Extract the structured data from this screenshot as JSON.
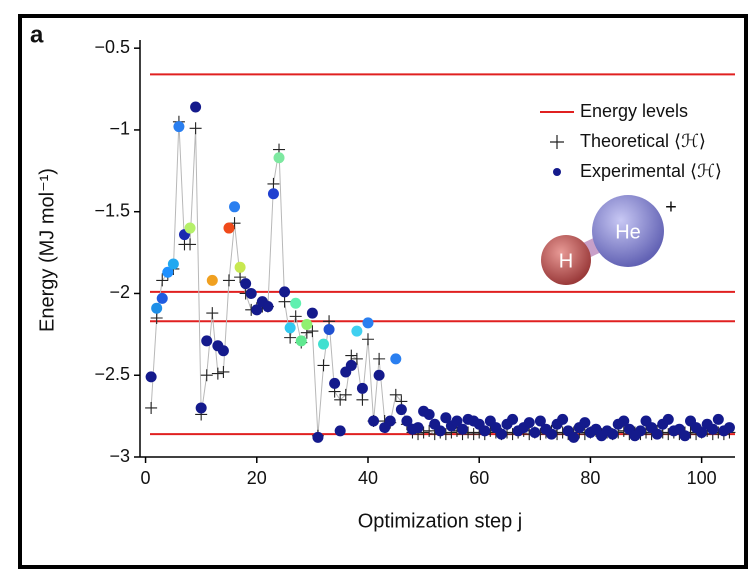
{
  "chart_data": {
    "type": "scatter",
    "panel_label": "a",
    "x_label": "Optimization step j",
    "y_label": "Energy (MJ mol⁻¹)",
    "xlim": [
      -1,
      106
    ],
    "ylim": [
      -3,
      -0.45
    ],
    "xticks": [
      0,
      20,
      40,
      60,
      80,
      100
    ],
    "yticks": [
      {
        "value": -0.5,
        "label": "−0.5"
      },
      {
        "value": -1,
        "label": "−1"
      },
      {
        "value": -1.5,
        "label": "−1.5"
      },
      {
        "value": -2,
        "label": "−2"
      },
      {
        "value": -2.5,
        "label": "−2.5"
      },
      {
        "value": -3,
        "label": "−3"
      }
    ],
    "legend_position": "upper right",
    "energy_levels": {
      "name": "Energy levels",
      "color": "#e02020",
      "values": [
        -0.66,
        -1.99,
        -2.17,
        -2.86
      ]
    },
    "x": [
      1,
      2,
      3,
      4,
      5,
      6,
      7,
      8,
      9,
      10,
      11,
      12,
      13,
      14,
      15,
      16,
      17,
      18,
      19,
      20,
      21,
      22,
      23,
      24,
      25,
      26,
      27,
      28,
      29,
      30,
      31,
      32,
      33,
      34,
      35,
      36,
      37,
      38,
      39,
      40,
      41,
      42,
      43,
      44,
      45,
      46,
      47,
      48,
      49,
      50,
      51,
      52,
      53,
      54,
      55,
      56,
      57,
      58,
      59,
      60,
      61,
      62,
      63,
      64,
      65,
      66,
      67,
      68,
      69,
      70,
      71,
      72,
      73,
      74,
      75,
      76,
      77,
      78,
      79,
      80,
      81,
      82,
      83,
      84,
      85,
      86,
      87,
      88,
      89,
      90,
      91,
      92,
      93,
      94,
      95,
      96,
      97,
      98,
      99,
      100,
      101,
      102,
      103,
      104,
      105
    ],
    "series": [
      {
        "name": "Theoretical ⟨ℋ⟩",
        "color": "#222222",
        "line_color": "#b8b8b8",
        "values": [
          -2.7,
          -2.15,
          -1.92,
          -1.88,
          -1.85,
          -0.95,
          -1.7,
          -1.7,
          -0.99,
          -2.74,
          -2.5,
          -2.12,
          -2.49,
          -2.48,
          -1.92,
          -1.57,
          -1.9,
          -2.0,
          -2.1,
          -2.09,
          -2.08,
          -2.08,
          -1.33,
          -1.12,
          -2.05,
          -2.27,
          -2.14,
          -2.3,
          -2.24,
          -2.23,
          -2.87,
          -2.44,
          -2.17,
          -2.6,
          -2.65,
          -2.62,
          -2.38,
          -2.4,
          -2.65,
          -2.28,
          -2.78,
          -2.4,
          -2.78,
          -2.79,
          -2.62,
          -2.66,
          -2.8,
          -2.85,
          -2.86,
          -2.85,
          -2.84,
          -2.86,
          -2.85,
          -2.86,
          -2.85,
          -2.84,
          -2.86,
          -2.85,
          -2.86,
          -2.85,
          -2.86,
          -2.84,
          -2.85,
          -2.86,
          -2.85,
          -2.86,
          -2.85,
          -2.84,
          -2.86,
          -2.85,
          -2.86,
          -2.85,
          -2.84,
          -2.86,
          -2.85,
          -2.86,
          -2.85,
          -2.85,
          -2.86,
          -2.85,
          -2.84,
          -2.86,
          -2.85,
          -2.86,
          -2.85,
          -2.84,
          -2.86,
          -2.85,
          -2.86,
          -2.85,
          -2.86,
          -2.84,
          -2.85,
          -2.86,
          -2.85,
          -2.86,
          -2.85,
          -2.85,
          -2.86,
          -2.85,
          -2.84,
          -2.86,
          -2.85,
          -2.86,
          -2.85
        ]
      },
      {
        "name": "Experimental ⟨ℋ⟩",
        "color": "#141a8c",
        "values": [
          -2.51,
          -2.09,
          -2.03,
          -1.87,
          -1.82,
          -0.98,
          -1.64,
          -1.6,
          -0.86,
          -2.7,
          -2.29,
          -1.92,
          -2.32,
          -2.35,
          -1.6,
          -1.47,
          -1.84,
          -1.94,
          -2.0,
          -2.1,
          -2.05,
          -2.08,
          -1.39,
          -1.17,
          -1.99,
          -2.21,
          -2.06,
          -2.29,
          -2.19,
          -2.12,
          -2.88,
          -2.31,
          -2.22,
          -2.55,
          -2.84,
          -2.48,
          -2.44,
          -2.23,
          -2.58,
          -2.18,
          -2.78,
          -2.5,
          -2.82,
          -2.78,
          -2.4,
          -2.71,
          -2.78,
          -2.83,
          -2.82,
          -2.72,
          -2.74,
          -2.8,
          -2.84,
          -2.76,
          -2.81,
          -2.78,
          -2.83,
          -2.77,
          -2.78,
          -2.8,
          -2.84,
          -2.78,
          -2.82,
          -2.86,
          -2.8,
          -2.77,
          -2.84,
          -2.82,
          -2.79,
          -2.85,
          -2.78,
          -2.83,
          -2.86,
          -2.8,
          -2.77,
          -2.84,
          -2.88,
          -2.82,
          -2.79,
          -2.85,
          -2.83,
          -2.87,
          -2.84,
          -2.86,
          -2.8,
          -2.78,
          -2.83,
          -2.87,
          -2.84,
          -2.78,
          -2.82,
          -2.86,
          -2.8,
          -2.77,
          -2.84,
          -2.83,
          -2.87,
          -2.78,
          -2.82,
          -2.85,
          -2.8,
          -2.83,
          -2.77,
          -2.84,
          -2.82
        ],
        "point_colors": [
          "#141a8c",
          "#1e8fe8",
          "#1f5be0",
          "#1e90ff",
          "#22a8f0",
          "#2a7ff0",
          "#1a2ab0",
          "#b5f06a",
          "#141a8c",
          "#141a8c",
          "#141a8c",
          "#f0a020",
          "#141a8c",
          "#141a8c",
          "#f04a1a",
          "#2a7ff0",
          "#c8e850",
          "#141a8c",
          "#141a8c",
          "#141a8c",
          "#141a8c",
          "#141a8c",
          "#2040d0",
          "#7de8a0",
          "#141a8c",
          "#30c8f0",
          "#60f0b0",
          "#60e890",
          "#90f070",
          "#141a8c",
          "#141a8c",
          "#40e0d0",
          "#2050d0",
          "#141a8c",
          "#141a8c",
          "#141a8c",
          "#141a8c",
          "#40d0f0",
          "#141a8c",
          "#2a7ff0",
          "#141a8c",
          "#141a8c",
          "#141a8c",
          "#141a8c",
          "#2a7ff0",
          "#141a8c",
          "#141a8c",
          "#141a8c",
          "#141a8c",
          "#141a8c",
          "#141a8c",
          "#141a8c",
          "#141a8c",
          "#141a8c",
          "#141a8c",
          "#141a8c",
          "#141a8c",
          "#141a8c",
          "#141a8c",
          "#141a8c",
          "#141a8c",
          "#141a8c",
          "#141a8c",
          "#141a8c",
          "#141a8c",
          "#141a8c",
          "#141a8c",
          "#141a8c",
          "#141a8c",
          "#141a8c",
          "#141a8c",
          "#141a8c",
          "#141a8c",
          "#141a8c",
          "#141a8c",
          "#141a8c",
          "#141a8c",
          "#141a8c",
          "#141a8c",
          "#141a8c",
          "#141a8c",
          "#141a8c",
          "#141a8c",
          "#141a8c",
          "#141a8c",
          "#141a8c",
          "#141a8c",
          "#141a8c",
          "#141a8c",
          "#141a8c",
          "#141a8c",
          "#141a8c",
          "#141a8c",
          "#141a8c",
          "#141a8c",
          "#141a8c",
          "#141a8c",
          "#141a8c",
          "#141a8c",
          "#141a8c",
          "#141a8c",
          "#141a8c",
          "#141a8c",
          "#141a8c",
          "#141a8c"
        ]
      }
    ],
    "annotations": {
      "atom_h": "H",
      "atom_he": "He",
      "charge": "+"
    }
  }
}
